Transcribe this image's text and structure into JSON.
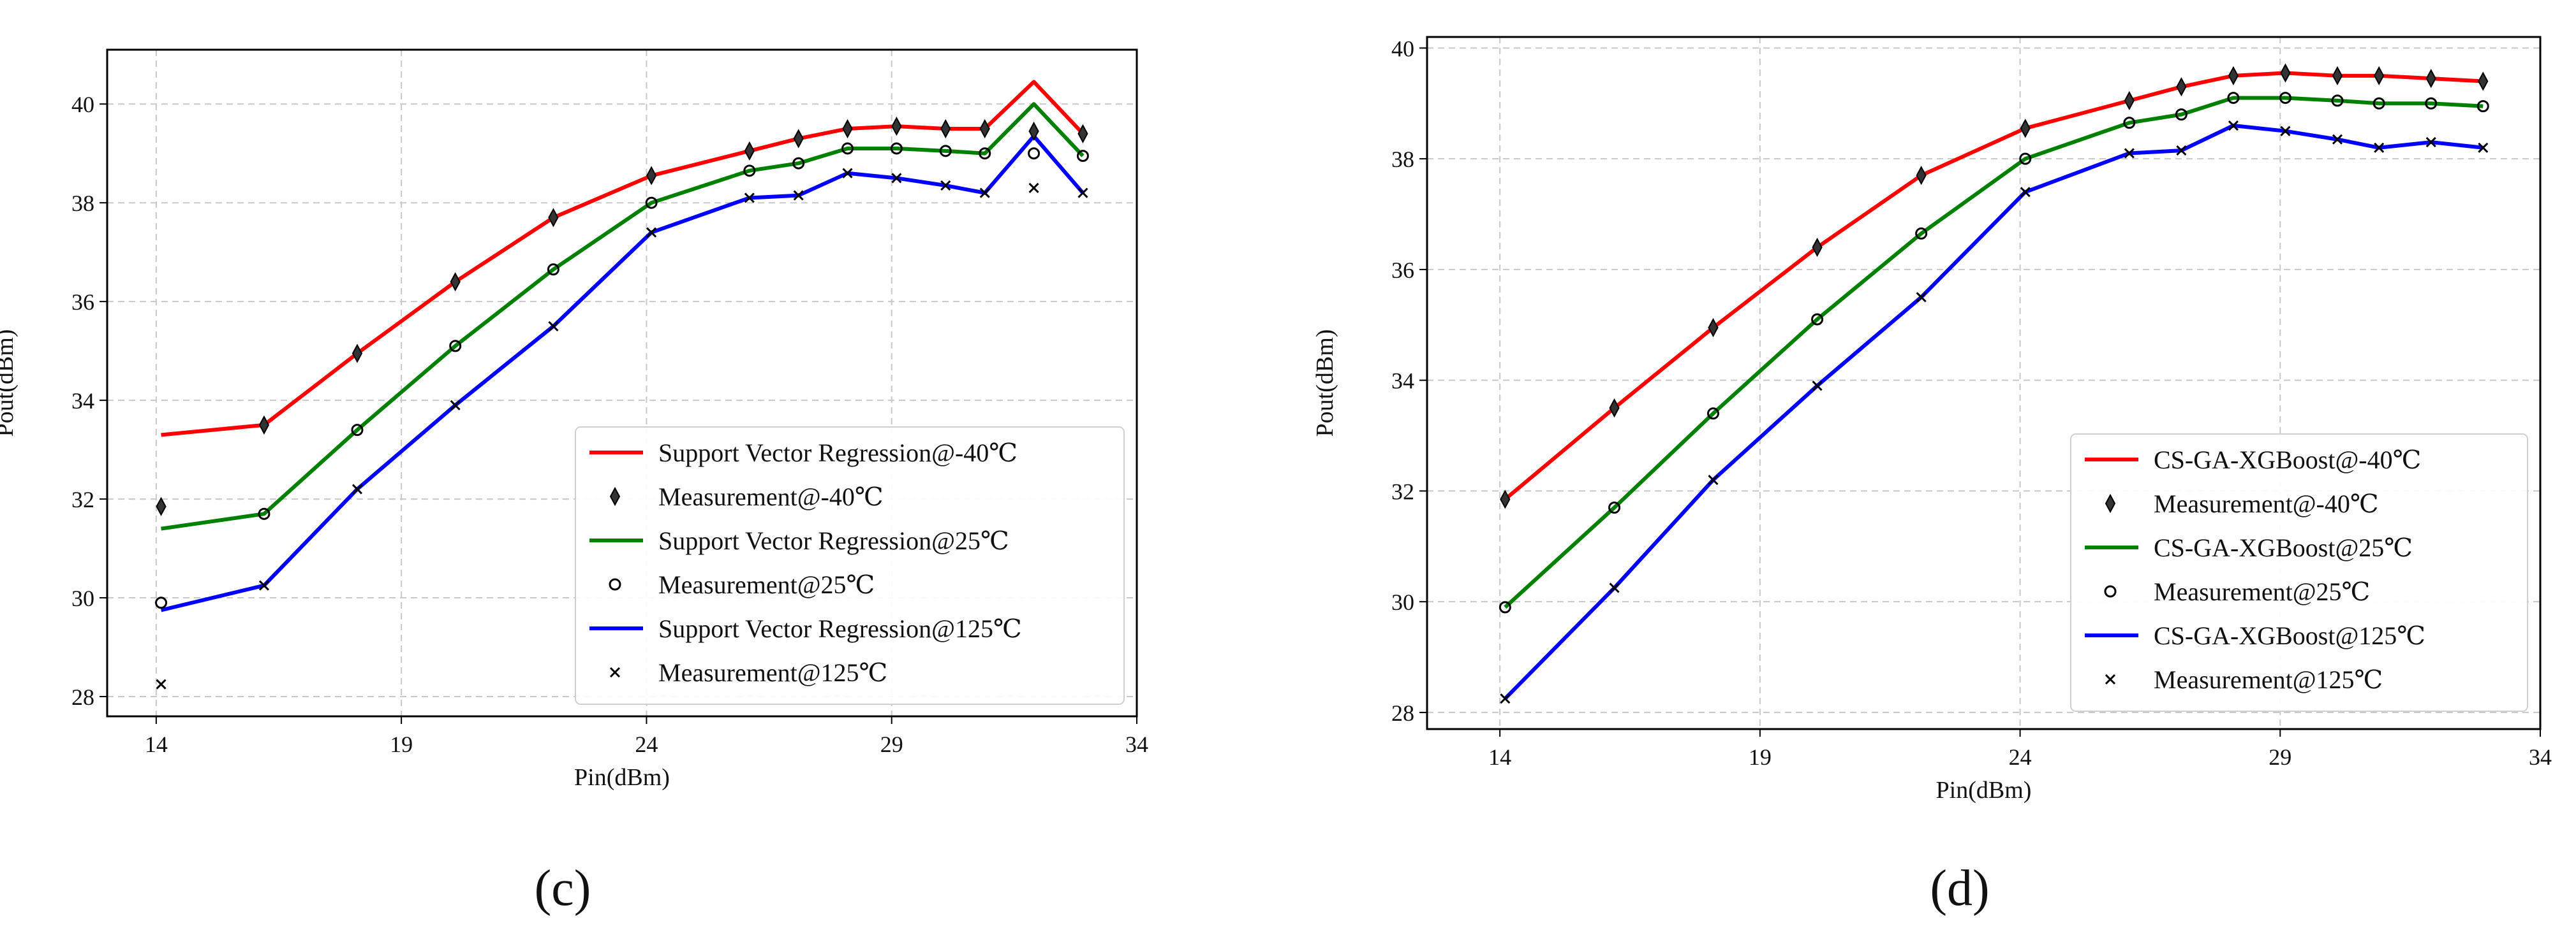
{
  "chart_data": [
    {
      "type": "line",
      "caption": "(c)",
      "xlabel": "Pin(dBm)",
      "ylabel": "Pout(dBm)",
      "xlim": [
        13,
        34
      ],
      "ylim": [
        27.6,
        41.1
      ],
      "xticks": [
        "14",
        "19",
        "24",
        "29",
        "34"
      ],
      "yticks": [
        "28",
        "30",
        "32",
        "34",
        "36",
        "38",
        "40"
      ],
      "grid": true,
      "legend_position": "lower-right",
      "x": [
        14.1,
        16.2,
        18.1,
        20.1,
        22.1,
        24.1,
        26.1,
        27.1,
        28.1,
        29.1,
        30.1,
        30.9,
        31.9,
        32.9
      ],
      "series": [
        {
          "name": "Support Vector Regression@-40℃",
          "kind": "line",
          "color": "#ff0000",
          "values": [
            33.3,
            33.5,
            34.95,
            36.4,
            37.7,
            38.55,
            39.05,
            39.3,
            39.5,
            39.55,
            39.5,
            39.5,
            40.45,
            39.4
          ]
        },
        {
          "name": "Measurement@-40℃",
          "kind": "marker",
          "marker": "diamond",
          "values": [
            31.85,
            33.5,
            34.95,
            36.4,
            37.7,
            38.55,
            39.05,
            39.3,
            39.5,
            39.55,
            39.5,
            39.5,
            39.45,
            39.4
          ]
        },
        {
          "name": "Support Vector Regression@25℃",
          "kind": "line",
          "color": "#008000",
          "values": [
            31.4,
            31.7,
            33.4,
            35.1,
            36.65,
            38.0,
            38.65,
            38.8,
            39.1,
            39.1,
            39.05,
            39.0,
            40.0,
            38.95
          ]
        },
        {
          "name": "Measurement@25℃",
          "kind": "marker",
          "marker": "circle",
          "values": [
            29.9,
            31.7,
            33.4,
            35.1,
            36.65,
            38.0,
            38.65,
            38.8,
            39.1,
            39.1,
            39.05,
            39.0,
            39.0,
            38.95
          ]
        },
        {
          "name": "Support Vector Regression@125℃",
          "kind": "line",
          "color": "#0000ff",
          "values": [
            29.75,
            30.25,
            32.2,
            33.9,
            35.5,
            37.4,
            38.1,
            38.15,
            38.6,
            38.5,
            38.35,
            38.2,
            39.35,
            38.2
          ]
        },
        {
          "name": "Measurement@125℃",
          "kind": "marker",
          "marker": "x",
          "values": [
            28.25,
            30.25,
            32.2,
            33.9,
            35.5,
            37.4,
            38.1,
            38.15,
            38.6,
            38.5,
            38.35,
            38.2,
            38.3,
            38.2
          ]
        }
      ]
    },
    {
      "type": "line",
      "caption": "(d)",
      "xlabel": "Pin(dBm)",
      "ylabel": "Pout(dBm)",
      "xlim": [
        12.6,
        34
      ],
      "ylim": [
        27.7,
        40.2
      ],
      "xticks": [
        "14",
        "19",
        "24",
        "29",
        "34"
      ],
      "yticks": [
        "28",
        "30",
        "32",
        "34",
        "36",
        "38",
        "40"
      ],
      "grid": true,
      "legend_position": "lower-right",
      "x": [
        14.1,
        16.2,
        18.1,
        20.1,
        22.1,
        24.1,
        26.1,
        27.1,
        28.1,
        29.1,
        30.1,
        30.9,
        31.9,
        32.9
      ],
      "series": [
        {
          "name": "CS-GA-XGBoost@-40℃",
          "kind": "line",
          "color": "#ff0000",
          "values": [
            31.85,
            33.5,
            34.95,
            36.4,
            37.7,
            38.55,
            39.05,
            39.3,
            39.5,
            39.55,
            39.5,
            39.5,
            39.45,
            39.4
          ]
        },
        {
          "name": "Measurement@-40℃",
          "kind": "marker",
          "marker": "diamond",
          "values": [
            31.85,
            33.5,
            34.95,
            36.4,
            37.7,
            38.55,
            39.05,
            39.3,
            39.5,
            39.55,
            39.5,
            39.5,
            39.45,
            39.4
          ]
        },
        {
          "name": "CS-GA-XGBoost@25℃",
          "kind": "line",
          "color": "#008000",
          "values": [
            29.9,
            31.7,
            33.4,
            35.1,
            36.65,
            38.0,
            38.65,
            38.8,
            39.1,
            39.1,
            39.05,
            39.0,
            39.0,
            38.95
          ]
        },
        {
          "name": "Measurement@25℃",
          "kind": "marker",
          "marker": "circle",
          "values": [
            29.9,
            31.7,
            33.4,
            35.1,
            36.65,
            38.0,
            38.65,
            38.8,
            39.1,
            39.1,
            39.05,
            39.0,
            39.0,
            38.95
          ]
        },
        {
          "name": "CS-GA-XGBoost@125℃",
          "kind": "line",
          "color": "#0000ff",
          "values": [
            28.25,
            30.25,
            32.2,
            33.9,
            35.5,
            37.4,
            38.1,
            38.15,
            38.6,
            38.5,
            38.35,
            38.2,
            38.3,
            38.2
          ]
        },
        {
          "name": "Measurement@125℃",
          "kind": "marker",
          "marker": "x",
          "values": [
            28.25,
            30.25,
            32.2,
            33.9,
            35.5,
            37.4,
            38.1,
            38.15,
            38.6,
            38.5,
            38.35,
            38.2,
            38.3,
            38.2
          ]
        }
      ]
    }
  ]
}
